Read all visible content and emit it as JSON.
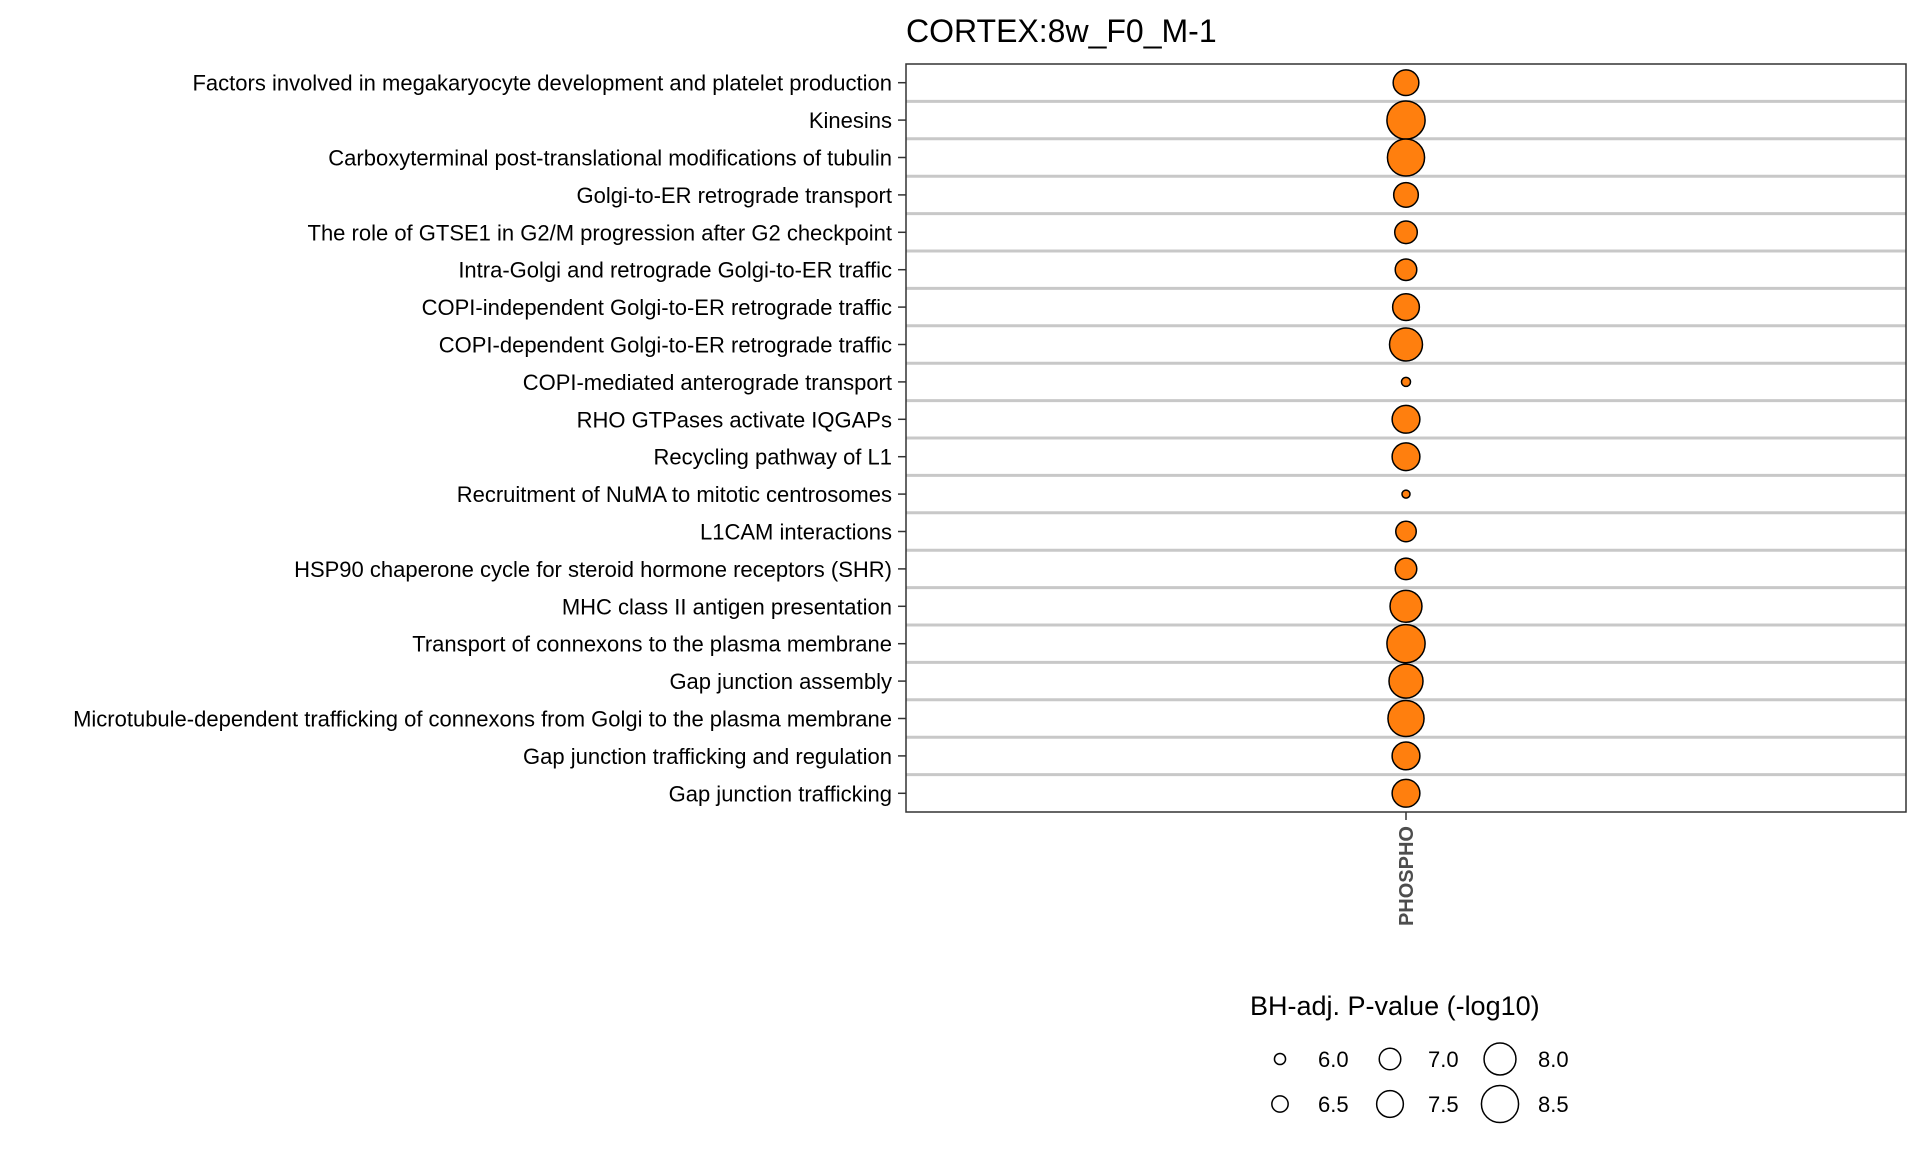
{
  "chart_data": {
    "type": "scatter",
    "title": "CORTEX:8w_F0_M-1",
    "xlabel": "",
    "ylabel": "",
    "x_categories": [
      "PHOSPHO"
    ],
    "y_categories": [
      "Factors involved in megakaryocyte development and platelet production",
      "Kinesins",
      "Carboxyterminal post-translational modifications of tubulin",
      "Golgi-to-ER retrograde transport",
      "The role of GTSE1 in G2/M progression after G2 checkpoint",
      "Intra-Golgi and retrograde Golgi-to-ER traffic",
      "COPI-independent Golgi-to-ER retrograde traffic",
      "COPI-dependent Golgi-to-ER retrograde traffic",
      "COPI-mediated anterograde transport",
      "RHO GTPases activate IQGAPs",
      "Recycling pathway of L1",
      "Recruitment of NuMA to mitotic centrosomes",
      "L1CAM interactions",
      "HSP90 chaperone cycle for steroid hormone receptors (SHR)",
      "MHC class II antigen presentation",
      "Transport of connexons to the plasma membrane",
      "Gap junction assembly",
      "Microtubule-dependent trafficking of connexons from Golgi to the plasma membrane",
      "Gap junction trafficking and regulation",
      "Gap junction trafficking"
    ],
    "series": [
      {
        "x": "PHOSPHO",
        "color": "#ff7f0e",
        "size_values": [
          7.4,
          8.6,
          8.5,
          7.3,
          7.1,
          7.0,
          7.5,
          8.1,
          5.8,
          7.6,
          7.6,
          5.7,
          6.9,
          7.0,
          8.0,
          8.6,
          8.2,
          8.4,
          7.6,
          7.6
        ]
      }
    ],
    "legend": {
      "title": "BH-adj. P-value (-log10)",
      "position": "bottom",
      "entries": [
        {
          "label": "6.0",
          "value": 6.0
        },
        {
          "label": "6.5",
          "value": 6.5
        },
        {
          "label": "7.0",
          "value": 7.0
        },
        {
          "label": "7.5",
          "value": 7.5
        },
        {
          "label": "8.0",
          "value": 8.0
        },
        {
          "label": "8.5",
          "value": 8.5
        }
      ]
    },
    "grid": true
  }
}
